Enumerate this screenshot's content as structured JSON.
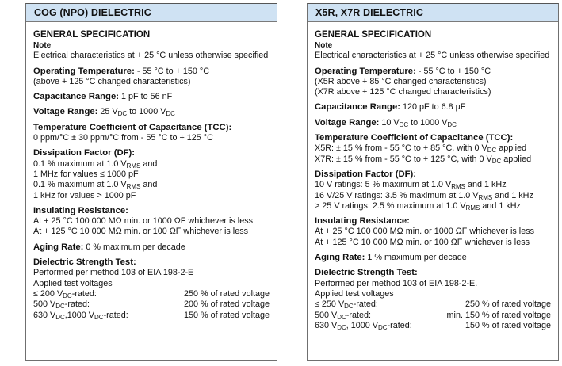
{
  "panels": [
    {
      "title": "COG (NPO) DIELECTRIC",
      "heading": "GENERAL SPECIFICATION",
      "note_label": "Note",
      "note": "Electrical characteristics at + 25 °C unless otherwise specified",
      "sections": [
        {
          "label": "Operating Temperature:",
          "value": [
            " - 55 °C to + 150 °C"
          ],
          "lines": [
            [
              "(above + 125 °C changed characteristics)"
            ]
          ]
        },
        {
          "label": "Capacitance Range:",
          "value": [
            " 1 pF to 56 nF"
          ],
          "lines": []
        },
        {
          "label": "Voltage Range:",
          "value": [
            " 25 V",
            {
              "sub": "DC"
            },
            " to 1000 V",
            {
              "sub": "DC"
            }
          ],
          "lines": []
        },
        {
          "label": "Temperature Coefficient of Capacitance (TCC):",
          "value": [],
          "lines": [
            [
              "0 ppm/°C ± 30 ppm/°C from - 55 °C to + 125 °C"
            ]
          ]
        },
        {
          "label": "Dissipation Factor (DF):",
          "value": [],
          "lines": [
            [
              "0.1 % maximum at 1.0 V",
              {
                "sub": "RMS"
              },
              " and"
            ],
            [
              "1 MHz for values ≤ 1000 pF"
            ],
            [
              "0.1 % maximum at 1.0 V",
              {
                "sub": "RMS"
              },
              " and"
            ],
            [
              "1 kHz for values > 1000 pF"
            ]
          ]
        },
        {
          "label": "Insulating Resistance:",
          "value": [],
          "lines": [
            [
              "At + 25 °C 100 000 MΩ min. or 1000 ΩF whichever is less"
            ],
            [
              "At + 125 °C 10 000 MΩ min. or 100 ΩF whichever is less"
            ]
          ]
        },
        {
          "label": "Aging Rate:",
          "value": [
            " 0 % maximum per decade"
          ],
          "lines": []
        },
        {
          "label": "Dielectric Strength Test:",
          "value": [],
          "lines": [
            [
              "Performed per method 103 of EIA 198-2-E"
            ],
            [
              "Applied test voltages"
            ]
          ],
          "rows": [
            {
              "left": [
                "≤ 200 V",
                {
                  "sub": "DC"
                },
                "-rated:"
              ],
              "right": "250 % of rated voltage"
            },
            {
              "left": [
                "500 V",
                {
                  "sub": "DC"
                },
                "-rated:"
              ],
              "right": "200 % of rated voltage"
            },
            {
              "left": [
                "630 V",
                {
                  "sub": "DC"
                },
                ",1000 V",
                {
                  "sub": "DC"
                },
                "-rated:"
              ],
              "right": "150 % of rated voltage"
            }
          ]
        }
      ]
    },
    {
      "title": "X5R, X7R DIELECTRIC",
      "heading": "GENERAL SPECIFICATION",
      "note_label": "Note",
      "note": "Electrical characteristics at + 25 °C unless otherwise specified",
      "sections": [
        {
          "label": "Operating Temperature:",
          "value": [
            " - 55 °C to + 150 °C"
          ],
          "lines": [
            [
              "(X5R above + 85 °C changed characteristics)"
            ],
            [
              "(X7R above + 125 °C changed characteristics)"
            ]
          ]
        },
        {
          "label": "Capacitance Range:",
          "value": [
            " 120 pF to 6.8 µF"
          ],
          "lines": []
        },
        {
          "label": "Voltage Range:",
          "value": [
            " 10 V",
            {
              "sub": "DC"
            },
            " to 1000 V",
            {
              "sub": "DC"
            }
          ],
          "lines": []
        },
        {
          "label": "Temperature Coefficient of Capacitance (TCC):",
          "value": [],
          "lines": [
            [
              "X5R: ± 15 % from - 55 °C to + 85 °C, with 0 V",
              {
                "sub": "DC"
              },
              " applied"
            ],
            [
              "X7R: ± 15 % from - 55 °C to + 125 °C, with 0 V",
              {
                "sub": "DC"
              },
              " applied"
            ]
          ]
        },
        {
          "label": "Dissipation Factor (DF):",
          "value": [],
          "lines": [
            [
              "10 V ratings: 5 % maximum at 1.0 V",
              {
                "sub": "RMS"
              },
              " and 1 kHz"
            ],
            [
              "16 V/25 V ratings: 3.5 % maximum at 1.0 V",
              {
                "sub": "RMS"
              },
              " and 1 kHz"
            ],
            [
              "> 25 V ratings: 2.5 % maximum at 1.0 V",
              {
                "sub": "RMS"
              },
              " and 1 kHz"
            ]
          ]
        },
        {
          "label": "Insulating Resistance:",
          "value": [],
          "lines": [
            [
              "At + 25 °C 100 000 MΩ min. or 1000 ΩF whichever is less"
            ],
            [
              "At + 125 °C 10 000 MΩ min. or 100 ΩF whichever is less"
            ]
          ]
        },
        {
          "label": "Aging Rate:",
          "value": [
            " 1 % maximum per decade"
          ],
          "lines": []
        },
        {
          "label": "Dielectric Strength Test:",
          "value": [],
          "lines": [
            [
              "Performed per method 103 of EIA 198-2-E."
            ],
            [
              "Applied test voltages"
            ]
          ],
          "rows": [
            {
              "left": [
                "≤ 250 V",
                {
                  "sub": "DC"
                },
                "-rated:"
              ],
              "right": "250 % of rated voltage"
            },
            {
              "left": [
                "500 V",
                {
                  "sub": "DC"
                },
                "-rated:"
              ],
              "right": "min. 150 % of rated voltage"
            },
            {
              "left": [
                "630 V",
                {
                  "sub": "DC"
                },
                ", 1000 V",
                {
                  "sub": "DC"
                },
                "-rated:"
              ],
              "right": "150 % of rated voltage"
            }
          ]
        }
      ]
    }
  ],
  "colors": {
    "header_bg": "#cfe2f3",
    "border": "#6f6f6f"
  }
}
